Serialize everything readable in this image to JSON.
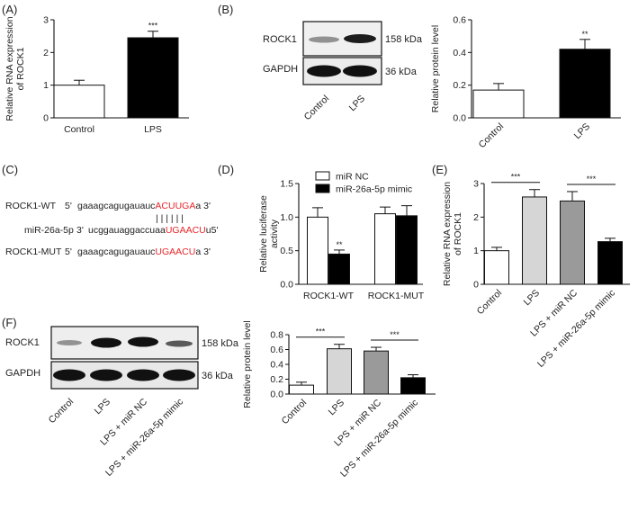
{
  "panels": {
    "A": "(A)",
    "B": "(B)",
    "C": "(C)",
    "D": "(D)",
    "E": "(E)",
    "F": "(F)"
  },
  "blots": {
    "B": {
      "rows": [
        "ROCK1",
        "GAPDH"
      ],
      "sizes": [
        "158 kDa",
        "36 kDa"
      ],
      "lanes": [
        "Control",
        "LPS"
      ]
    },
    "F": {
      "rows": [
        "ROCK1",
        "GAPDH"
      ],
      "sizes": [
        "158 kDa",
        "36 kDa"
      ],
      "lanes": [
        "Control",
        "LPS",
        "LPS + miR NC",
        "LPS + miR-26a-5p mimic"
      ]
    }
  },
  "sequences": {
    "rows": [
      {
        "name": "ROCK1-WT",
        "prime5": "5'",
        "pre": "gaaagcagugauauc",
        "hl": "ACUUGA",
        "post": "a 3'"
      },
      {
        "name": "miR-26a-5p",
        "prime5": "3'",
        "pre": "ucggauaggaccuaa",
        "hl": "UGAACU",
        "post": "u5'"
      },
      {
        "name": "ROCK1-MUT",
        "prime5": "5'",
        "pre": "gaaagcagugauauc",
        "hl": "UGAACU",
        "post": "a 3'"
      }
    ],
    "pairing": "| | | | | |"
  },
  "colors": {
    "highlight": "#e8262a",
    "black": "#000000",
    "light_gray": "#d6d6d6",
    "mid_gray": "#9a9a9a",
    "white": "#ffffff"
  },
  "chart_data": [
    {
      "id": "A",
      "type": "bar",
      "categories": [
        "Control",
        "LPS"
      ],
      "values": [
        1.0,
        2.45
      ],
      "errors": [
        0.15,
        0.2
      ],
      "colors": [
        "white",
        "black"
      ],
      "ylabel_lines": [
        "Relative RNA expression",
        "of ROCK1"
      ],
      "ylim": [
        0,
        3
      ],
      "yticks": [
        0,
        1,
        2,
        3
      ],
      "tick_labels": [
        "0",
        "1",
        "2",
        "3"
      ],
      "sig": [
        {
          "bar": 1,
          "text": "***"
        }
      ]
    },
    {
      "id": "B",
      "type": "bar",
      "categories": [
        "Control",
        "LPS"
      ],
      "values": [
        0.17,
        0.42
      ],
      "errors": [
        0.04,
        0.06
      ],
      "colors": [
        "white",
        "black"
      ],
      "ylabel_lines": [
        "Relative protein level"
      ],
      "ylim": [
        0,
        0.6
      ],
      "yticks": [
        0,
        0.2,
        0.4,
        0.6
      ],
      "tick_labels": [
        "0.0",
        "0.2",
        "0.4",
        "0.6"
      ],
      "sig": [
        {
          "bar": 1,
          "text": "**"
        }
      ]
    },
    {
      "id": "D",
      "type": "bar",
      "categories": [
        "ROCK1-WT",
        "ROCK1-MUT"
      ],
      "series": [
        {
          "name": "miR NC",
          "values": [
            1.0,
            1.05
          ],
          "errors": [
            0.14,
            0.1
          ],
          "color": "white"
        },
        {
          "name": "miR-26a-5p mimic",
          "values": [
            0.45,
            1.02
          ],
          "errors": [
            0.06,
            0.15
          ],
          "color": "black"
        }
      ],
      "ylabel_lines": [
        "Relative luciferase",
        "activity"
      ],
      "ylim": [
        0,
        1.5
      ],
      "yticks": [
        0,
        0.5,
        1.0,
        1.5
      ],
      "tick_labels": [
        "0.0",
        "0.5",
        "1.0",
        "1.5"
      ],
      "sig": [
        {
          "group": 0,
          "series": 1,
          "text": "**"
        }
      ],
      "legend": "top"
    },
    {
      "id": "E",
      "type": "bar",
      "categories": [
        "Control",
        "LPS",
        "LPS + miR NC",
        "LPS + miR-26a-5p mimic"
      ],
      "values": [
        1.0,
        2.6,
        2.48,
        1.27
      ],
      "errors": [
        0.1,
        0.22,
        0.28,
        0.1
      ],
      "colors": [
        "white",
        "light_gray",
        "mid_gray",
        "black"
      ],
      "ylabel_lines": [
        "Relative RNA expression",
        "of ROCK1"
      ],
      "ylim": [
        0,
        3
      ],
      "yticks": [
        0,
        1,
        2,
        3
      ],
      "tick_labels": [
        "0",
        "1",
        "2",
        "3"
      ],
      "brackets": [
        {
          "from": 0,
          "to": 1,
          "text": "***"
        },
        {
          "from": 2,
          "to": 3,
          "text": "***"
        }
      ]
    },
    {
      "id": "F",
      "type": "bar",
      "categories": [
        "Control",
        "LPS",
        "LPS + miR NC",
        "LPS + miR-26a-5p mimic"
      ],
      "values": [
        0.12,
        0.61,
        0.58,
        0.22
      ],
      "errors": [
        0.04,
        0.06,
        0.05,
        0.04
      ],
      "colors": [
        "white",
        "light_gray",
        "mid_gray",
        "black"
      ],
      "ylabel_lines": [
        "Relative protein level"
      ],
      "ylim": [
        0,
        0.8
      ],
      "yticks": [
        0,
        0.2,
        0.4,
        0.6,
        0.8
      ],
      "tick_labels": [
        "0.0",
        "0.2",
        "0.4",
        "0.6",
        "0.8"
      ],
      "brackets": [
        {
          "from": 0,
          "to": 1,
          "text": "***"
        },
        {
          "from": 2,
          "to": 3,
          "text": "***"
        }
      ]
    }
  ]
}
